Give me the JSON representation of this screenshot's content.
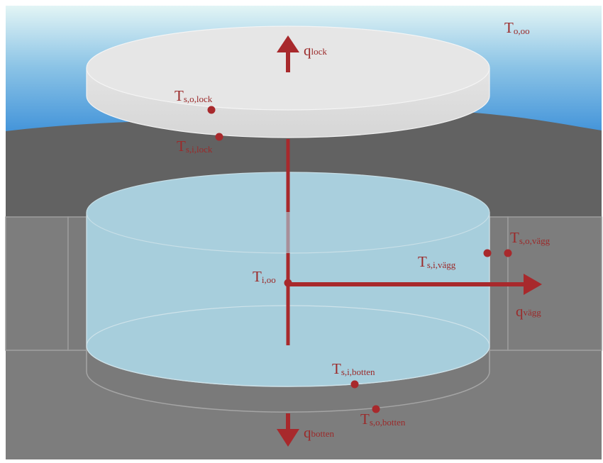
{
  "colors": {
    "accent": "#a8292c",
    "sky_top": "#dff3f5",
    "sky_bottom": "#3f92d8",
    "hill": "#626262",
    "ground": "#7c7c7c",
    "water": "#a7cedc",
    "lid": "#e6e6e6"
  },
  "labels": {
    "t_o_inf": {
      "main": "T",
      "sub": "o,oo"
    },
    "q_lock": {
      "main": "q",
      "sub": "lock"
    },
    "t_s_o_lock": {
      "main": "T",
      "sub": "s,o,lock"
    },
    "t_s_i_lock": {
      "main": "T",
      "sub": "s,i,lock"
    },
    "t_s_o_vagg": {
      "main": "T",
      "sub": "s,o,vägg"
    },
    "t_s_i_vagg": {
      "main": "T",
      "sub": "s,i,vägg"
    },
    "t_i_inf": {
      "main": "T",
      "sub": "i,oo"
    },
    "q_vagg": {
      "main": "q",
      "sub": "vägg"
    },
    "t_s_i_botten": {
      "main": "T",
      "sub": "s,i,botten"
    },
    "t_s_o_botten": {
      "main": "T",
      "sub": "s,o,botten"
    },
    "q_botten": {
      "main": "q",
      "sub": "botten"
    }
  }
}
